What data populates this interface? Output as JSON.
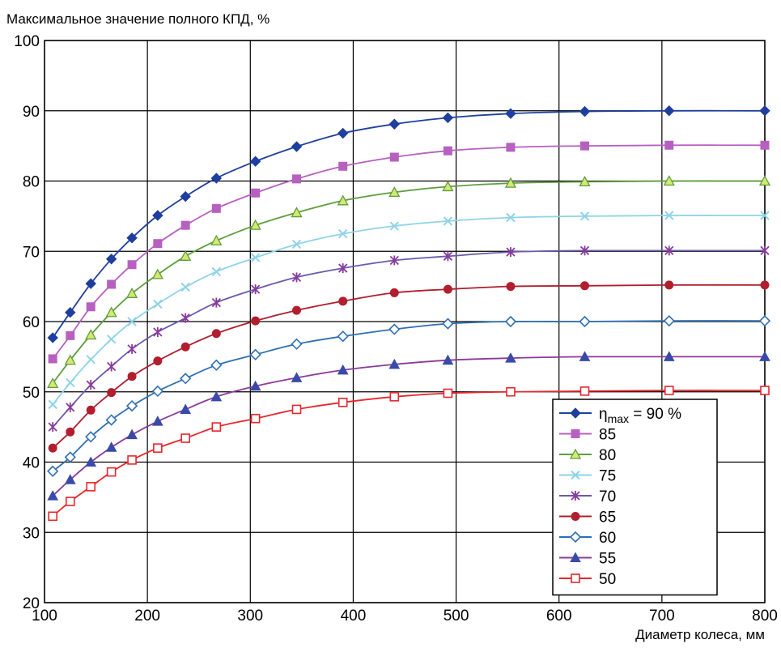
{
  "chart_data": {
    "type": "line",
    "ylabel": "Максимальное значение полного КПД, %",
    "xlabel": "Диаметр колеса, мм",
    "xlim": [
      100,
      800
    ],
    "ylim": [
      20,
      100
    ],
    "xticks": [
      100,
      200,
      300,
      400,
      500,
      600,
      700,
      800
    ],
    "yticks": [
      20,
      30,
      40,
      50,
      60,
      70,
      80,
      90,
      100
    ],
    "grid": true,
    "legend": {
      "position": "bottom-right",
      "prefix": "η",
      "subscript": "max",
      "first_suffix": " = 90 %"
    },
    "x": [
      108,
      125,
      145,
      165,
      185,
      210,
      237,
      267,
      305,
      345,
      390,
      440,
      492,
      553,
      625,
      707,
      800
    ],
    "series": [
      {
        "name": "90",
        "color": "#1f3f9e",
        "marker": "diamond-filled",
        "values": [
          57.7,
          61.3,
          65.4,
          68.9,
          71.9,
          75.1,
          77.8,
          80.4,
          82.8,
          84.9,
          86.8,
          88.1,
          89.0,
          89.6,
          89.9,
          90.0,
          90.0
        ]
      },
      {
        "name": "85",
        "color": "#b760c0",
        "marker": "square-filled",
        "values": [
          54.7,
          58.0,
          62.1,
          65.3,
          68.1,
          71.1,
          73.7,
          76.1,
          78.3,
          80.3,
          82.1,
          83.4,
          84.3,
          84.8,
          85.0,
          85.1,
          85.1
        ]
      },
      {
        "name": "80",
        "color": "#5d9e3c",
        "marker": "triangle-open",
        "fill": "#d6e872",
        "values": [
          51.2,
          54.5,
          58.1,
          61.3,
          64.0,
          66.7,
          69.3,
          71.5,
          73.7,
          75.5,
          77.2,
          78.4,
          79.2,
          79.7,
          79.9,
          80.0,
          80.0
        ]
      },
      {
        "name": "75",
        "color": "#8fd3e8",
        "marker": "x",
        "values": [
          48.2,
          51.3,
          54.6,
          57.5,
          60.0,
          62.5,
          64.9,
          67.1,
          69.1,
          71.0,
          72.5,
          73.6,
          74.3,
          74.8,
          75.0,
          75.1,
          75.1
        ]
      },
      {
        "name": "70",
        "color": "#6a5ab0",
        "marker": "star",
        "markerColor": "#8b3a9a",
        "values": [
          45.0,
          47.8,
          51.0,
          53.6,
          56.1,
          58.5,
          60.5,
          62.7,
          64.6,
          66.3,
          67.6,
          68.7,
          69.3,
          69.9,
          70.1,
          70.1,
          70.1
        ]
      },
      {
        "name": "65",
        "color": "#b11e2e",
        "marker": "circle-filled",
        "values": [
          42.0,
          44.3,
          47.4,
          49.9,
          52.2,
          54.4,
          56.4,
          58.3,
          60.1,
          61.6,
          62.9,
          64.1,
          64.6,
          65.0,
          65.1,
          65.2,
          65.2
        ]
      },
      {
        "name": "60",
        "color": "#2e6fb3",
        "marker": "diamond-open",
        "values": [
          38.7,
          40.7,
          43.6,
          46.0,
          48.0,
          50.1,
          51.9,
          53.8,
          55.3,
          56.8,
          57.9,
          58.9,
          59.7,
          60.0,
          60.0,
          60.1,
          60.1
        ]
      },
      {
        "name": "55",
        "color": "#8b3a9a",
        "marker": "triangle-filled",
        "markerColor": "#3a4aa8",
        "values": [
          35.2,
          37.5,
          40.0,
          42.1,
          43.9,
          45.8,
          47.5,
          49.3,
          50.8,
          52.0,
          53.1,
          53.9,
          54.5,
          54.8,
          55.0,
          55.0,
          55.0
        ]
      },
      {
        "name": "50",
        "color": "#e8262c",
        "marker": "square-open",
        "values": [
          32.3,
          34.4,
          36.5,
          38.6,
          40.3,
          42.0,
          43.4,
          45.0,
          46.2,
          47.5,
          48.5,
          49.3,
          49.8,
          50.0,
          50.1,
          50.2,
          50.2
        ]
      }
    ]
  }
}
